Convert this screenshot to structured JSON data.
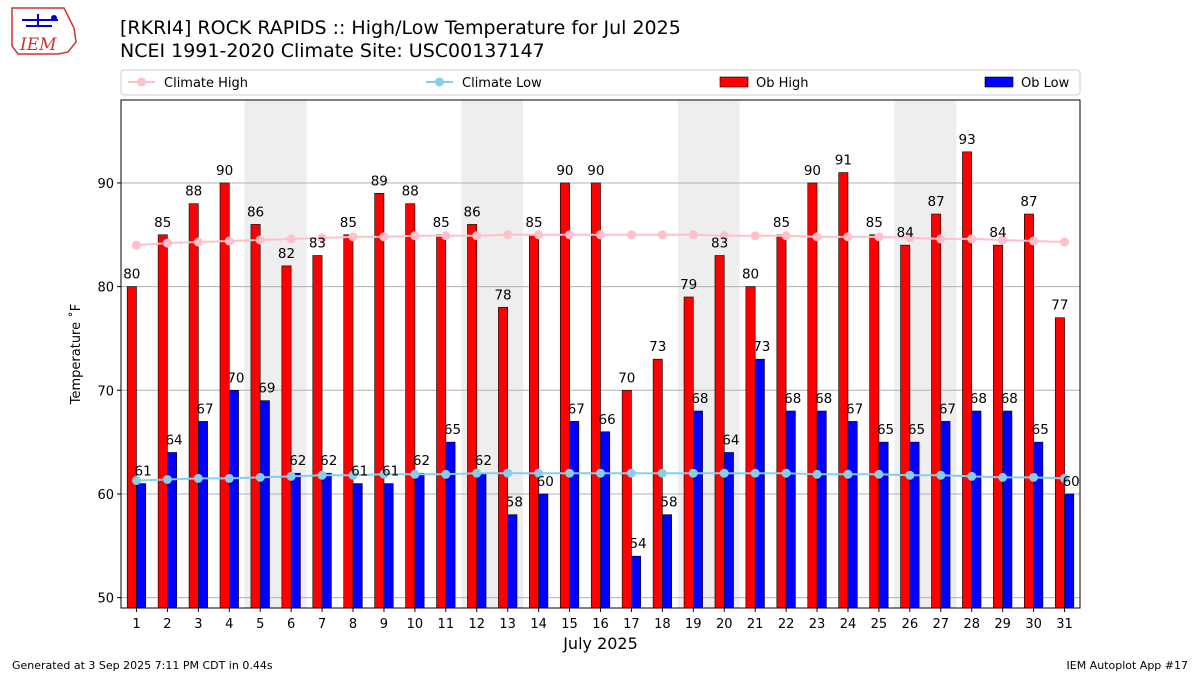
{
  "header": {
    "title_line1": "[RKRI4] ROCK RAPIDS :: High/Low Temperature for Jul 2025",
    "title_line2": "NCEI 1991-2020 Climate Site: USC00137147",
    "logo_text": "IEM"
  },
  "footer": {
    "generated": "Generated at 3 Sep 2025 7:11 PM CDT in 0.44s",
    "app": "IEM Autoplot App #17"
  },
  "colors": {
    "ob_high": "#ff0000",
    "ob_low": "#0000ff",
    "climate_high": "#ffc0cb",
    "climate_low": "#87ceeb",
    "weekend_shade": "#eeeeee"
  },
  "chart_data": {
    "type": "bar",
    "xlabel": "July 2025",
    "ylabel": "Temperature ˚F",
    "ylim": [
      49,
      98
    ],
    "yticks": [
      50,
      60,
      70,
      80,
      90
    ],
    "grid": true,
    "legend_position": "top",
    "categories": [
      "1",
      "2",
      "3",
      "4",
      "5",
      "6",
      "7",
      "8",
      "9",
      "10",
      "11",
      "12",
      "13",
      "14",
      "15",
      "16",
      "17",
      "18",
      "19",
      "20",
      "21",
      "22",
      "23",
      "24",
      "25",
      "26",
      "27",
      "28",
      "29",
      "30",
      "31"
    ],
    "weekend_days": [
      5,
      6,
      12,
      13,
      19,
      20,
      26,
      27
    ],
    "series": [
      {
        "name": "Climate High",
        "kind": "line",
        "values": [
          84.0,
          84.2,
          84.3,
          84.4,
          84.5,
          84.6,
          84.7,
          84.8,
          84.8,
          84.9,
          84.9,
          84.9,
          85.0,
          85.0,
          85.0,
          85.0,
          85.0,
          85.0,
          85.0,
          84.9,
          84.9,
          84.9,
          84.8,
          84.8,
          84.8,
          84.7,
          84.6,
          84.6,
          84.5,
          84.4,
          84.3
        ]
      },
      {
        "name": "Climate Low",
        "kind": "line",
        "values": [
          61.3,
          61.4,
          61.5,
          61.5,
          61.6,
          61.7,
          61.8,
          61.8,
          61.9,
          61.9,
          61.9,
          62.0,
          62.0,
          62.0,
          62.0,
          62.0,
          62.0,
          62.0,
          62.0,
          62.0,
          62.0,
          62.0,
          61.9,
          61.9,
          61.9,
          61.8,
          61.8,
          61.7,
          61.6,
          61.6,
          61.5
        ]
      },
      {
        "name": "Ob High",
        "kind": "bar",
        "values": [
          80,
          85,
          88,
          90,
          86,
          82,
          83,
          85,
          89,
          88,
          85,
          86,
          78,
          85,
          90,
          90,
          70,
          73,
          79,
          83,
          80,
          85,
          90,
          91,
          85,
          84,
          87,
          93,
          84,
          87,
          77
        ]
      },
      {
        "name": "Ob Low",
        "kind": "bar",
        "values": [
          61,
          64,
          67,
          70,
          69,
          62,
          62,
          61,
          61,
          62,
          65,
          62,
          58,
          60,
          67,
          66,
          54,
          58,
          68,
          64,
          73,
          68,
          68,
          67,
          65,
          65,
          67,
          68,
          68,
          65,
          60
        ]
      }
    ]
  }
}
